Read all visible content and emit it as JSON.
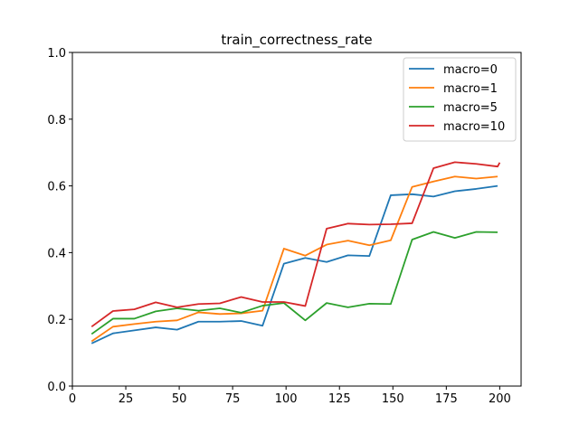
{
  "chart_data": {
    "type": "line",
    "title": "train_correctness_rate",
    "xlabel": "",
    "ylabel": "",
    "xlim": [
      0,
      210
    ],
    "ylim": [
      0.0,
      1.0
    ],
    "x_ticks": [
      0,
      25,
      50,
      75,
      100,
      125,
      150,
      175,
      200
    ],
    "y_ticks": [
      0.0,
      0.2,
      0.4,
      0.6,
      0.8,
      1.0
    ],
    "x_tick_labels": [
      "0",
      "25",
      "50",
      "75",
      "100",
      "125",
      "150",
      "175",
      "200"
    ],
    "y_tick_labels": [
      "0.0",
      "0.2",
      "0.4",
      "0.6",
      "0.8",
      "1.0"
    ],
    "grid": false,
    "legend_position": "top-right",
    "x": [
      9,
      19,
      29,
      39,
      49,
      59,
      69,
      79,
      89,
      99,
      109,
      119,
      129,
      139,
      149,
      159,
      169,
      179,
      189,
      199,
      200
    ],
    "series": [
      {
        "name": "macro=0",
        "color": "#1f77b4",
        "values": [
          0.128,
          0.158,
          0.167,
          0.176,
          0.169,
          0.193,
          0.193,
          0.195,
          0.181,
          0.367,
          0.384,
          0.372,
          0.392,
          0.39,
          0.572,
          0.575,
          0.568,
          0.584,
          0.591,
          0.6,
          null
        ]
      },
      {
        "name": "macro=1",
        "color": "#ff7f0e",
        "values": [
          0.134,
          0.178,
          0.186,
          0.193,
          0.197,
          0.221,
          0.216,
          0.218,
          0.226,
          0.412,
          0.391,
          0.424,
          0.436,
          0.422,
          0.437,
          0.597,
          0.613,
          0.628,
          0.622,
          0.628,
          null
        ]
      },
      {
        "name": "macro=5",
        "color": "#2ca02c",
        "values": [
          0.156,
          0.202,
          0.202,
          0.224,
          0.233,
          0.226,
          0.233,
          0.22,
          0.241,
          0.249,
          0.197,
          0.249,
          0.236,
          0.247,
          0.246,
          0.439,
          0.462,
          0.444,
          0.462,
          0.461,
          null
        ]
      },
      {
        "name": "macro=10",
        "color": "#d62728",
        "values": [
          0.178,
          0.225,
          0.23,
          0.251,
          0.236,
          0.246,
          0.248,
          0.267,
          0.252,
          0.252,
          0.24,
          0.472,
          0.487,
          0.484,
          0.485,
          0.488,
          0.653,
          0.671,
          0.666,
          0.658,
          0.67
        ]
      }
    ]
  }
}
